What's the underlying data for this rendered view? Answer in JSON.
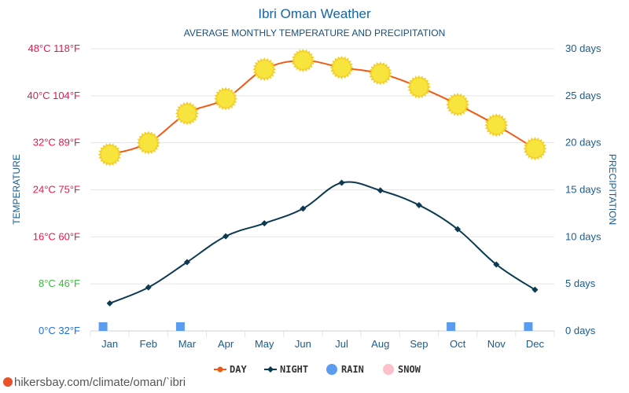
{
  "chart_data": {
    "type": "line",
    "title": "Ibri Oman Weather",
    "subtitle": "AVERAGE MONTHLY TEMPERATURE AND PRECIPITATION",
    "ylabel_left": "TEMPERATURE",
    "ylabel_right": "PRECIPITATION",
    "categories": [
      "Jan",
      "Feb",
      "Mar",
      "Apr",
      "May",
      "Jun",
      "Jul",
      "Aug",
      "Sep",
      "Oct",
      "Nov",
      "Dec"
    ],
    "series": [
      {
        "name": "DAY",
        "unit": "°C",
        "color": "#f05a14",
        "values": [
          30,
          32,
          37,
          39.5,
          44.5,
          46,
          44.8,
          43.8,
          41.5,
          38.5,
          35,
          31
        ]
      },
      {
        "name": "NIGHT",
        "unit": "°C",
        "color": "#0b3a52",
        "values": [
          4.7,
          7.4,
          11.7,
          16.1,
          18.3,
          20.8,
          25.2,
          23.9,
          21.4,
          17.3,
          11.3,
          7
        ]
      },
      {
        "name": "RAIN",
        "unit": "days",
        "color": "#5b9cf0",
        "values": [
          0.5,
          0,
          0.5,
          0,
          0,
          0,
          0,
          0,
          0,
          0.5,
          0,
          0.5
        ]
      },
      {
        "name": "SNOW",
        "unit": "days",
        "color": "#ffc0cb",
        "values": [
          0,
          0,
          0,
          0,
          0,
          0,
          0,
          0,
          0,
          0,
          0,
          0
        ]
      }
    ],
    "ylim_left": [
      0,
      48
    ],
    "ylim_right": [
      0,
      30
    ],
    "left_ticks": [
      {
        "value": 0,
        "label": "0°C 32°F",
        "color": "#1e6fd9"
      },
      {
        "value": 8,
        "label": "8°C 46°F",
        "color": "#3fb93f"
      },
      {
        "value": 16,
        "label": "16°C 60°F",
        "color": "#e01a4f"
      },
      {
        "value": 24,
        "label": "24°C 75°F",
        "color": "#e01a4f"
      },
      {
        "value": 32,
        "label": "32°C 89°F",
        "color": "#e01a4f"
      },
      {
        "value": 40,
        "label": "40°C 104°F",
        "color": "#e01a4f"
      },
      {
        "value": 48,
        "label": "48°C 118°F",
        "color": "#e01a4f"
      }
    ],
    "right_ticks": [
      {
        "value": 0,
        "label": "0 days"
      },
      {
        "value": 5,
        "label": "5 days"
      },
      {
        "value": 10,
        "label": "10 days"
      },
      {
        "value": 15,
        "label": "15 days"
      },
      {
        "value": 20,
        "label": "20 days"
      },
      {
        "value": 25,
        "label": "25 days"
      },
      {
        "value": 30,
        "label": "30 days"
      }
    ],
    "grid": true,
    "legend": "bottom-center"
  },
  "source": "hikersbay.com/climate/oman/`ibri",
  "colors": {
    "title": "#1565a6",
    "subtitle": "#1a4e78",
    "axis_label": "#1a5c8c",
    "grid": "#e4e4e4",
    "sun": "#f7e43c"
  }
}
